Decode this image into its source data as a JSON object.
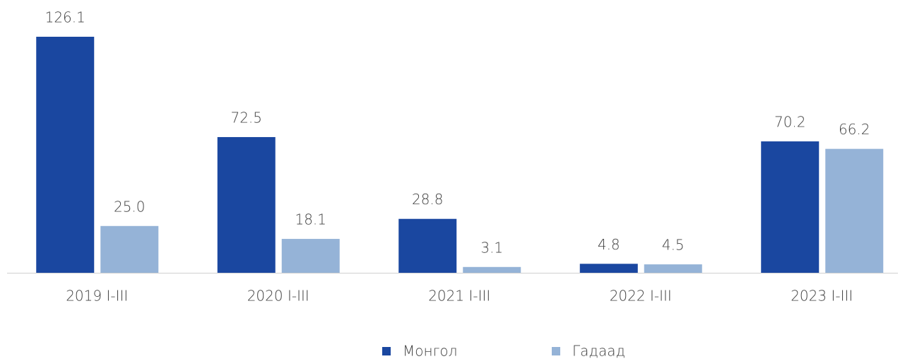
{
  "chart_data": {
    "type": "bar",
    "categories": [
      "2019 I-III",
      "2020 I-III",
      "2021 I-III",
      "2022 I-III",
      "2023 I-III"
    ],
    "series": [
      {
        "name": "Монгол",
        "color": "#1a47a0",
        "values": [
          126.1,
          72.5,
          28.8,
          4.8,
          70.2
        ],
        "value_labels": [
          "126.1",
          "72.5",
          "28.8",
          "4.8",
          "70.2"
        ]
      },
      {
        "name": "Гадаад",
        "color": "#95b3d7",
        "values": [
          25.0,
          18.1,
          3.1,
          4.5,
          66.2
        ],
        "value_labels": [
          "25.0",
          "18.1",
          "3.1",
          "4.5",
          "66.2"
        ]
      }
    ],
    "legend": "bottom"
  }
}
